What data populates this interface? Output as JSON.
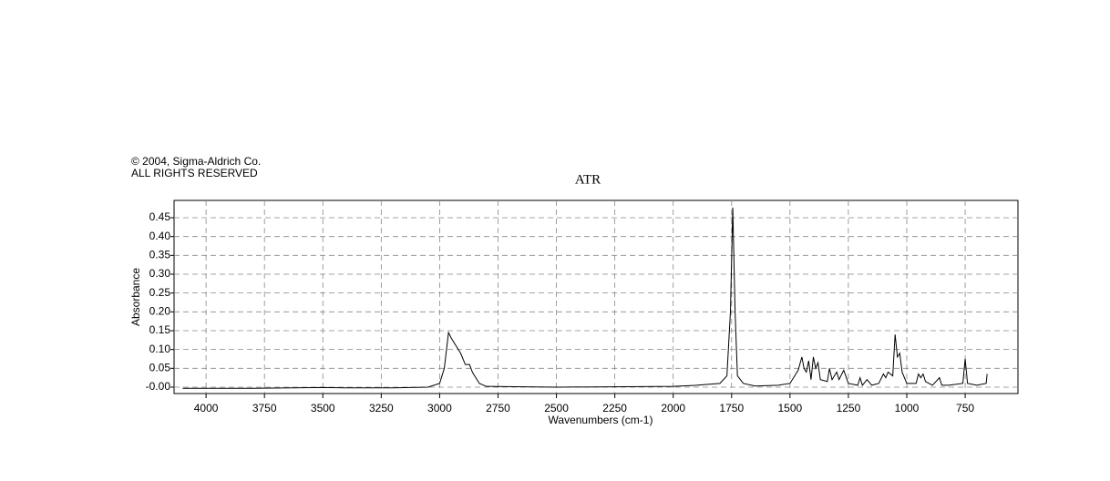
{
  "chart_data": {
    "type": "line",
    "title": "ATR",
    "annotations": [
      "© 2004, Sigma-Aldrich Co.",
      "ALL RIGHTS RESERVED"
    ],
    "x_label": "Wavenumbers (cm-1)",
    "y_label": "Absorbance",
    "color": "#000000",
    "grid": true,
    "xlim": [
      4137,
      524
    ],
    "ylim": [
      -0.017,
      0.496
    ],
    "xticks": [
      4000,
      3750,
      3500,
      3250,
      3000,
      2750,
      2500,
      2250,
      2000,
      1750,
      1500,
      1250,
      1000,
      750
    ],
    "yticks": [
      {
        "value": 0,
        "label": "-0.00"
      },
      0.05,
      {
        "value": 0.1,
        "label": "0.10"
      },
      0.15,
      {
        "value": 0.2,
        "label": "0.20"
      },
      0.25,
      {
        "value": 0.3,
        "label": "0.30"
      },
      0.35,
      {
        "value": 0.4,
        "label": "0.40"
      },
      0.45
    ],
    "x": [
      4100,
      3800,
      3500,
      3400,
      3200,
      3050,
      3000,
      2980,
      2962,
      2950,
      2930,
      2910,
      2890,
      2872,
      2860,
      2850,
      2830,
      2800,
      2500,
      2000,
      1900,
      1800,
      1770,
      1755,
      1745,
      1735,
      1725,
      1700,
      1650,
      1550,
      1500,
      1480,
      1465,
      1449,
      1440,
      1430,
      1420,
      1410,
      1400,
      1390,
      1380,
      1370,
      1340,
      1331,
      1320,
      1300,
      1290,
      1270,
      1250,
      1210,
      1200,
      1190,
      1170,
      1150,
      1120,
      1100,
      1090,
      1080,
      1060,
      1050,
      1040,
      1030,
      1020,
      1000,
      960,
      950,
      940,
      930,
      920,
      890,
      860,
      850,
      820,
      760,
      750,
      740,
      700,
      660,
      656
    ],
    "values": [
      -0.003,
      -0.003,
      -0.001,
      -0.002,
      -0.002,
      0.0,
      0.01,
      0.05,
      0.145,
      0.13,
      0.11,
      0.09,
      0.06,
      0.06,
      0.04,
      0.03,
      0.01,
      0.002,
      0.0,
      0.002,
      0.005,
      0.01,
      0.03,
      0.2,
      0.477,
      0.2,
      0.03,
      0.01,
      0.003,
      0.005,
      0.01,
      0.03,
      0.045,
      0.08,
      0.05,
      0.04,
      0.07,
      0.02,
      0.08,
      0.05,
      0.065,
      0.02,
      0.015,
      0.05,
      0.02,
      0.04,
      0.02,
      0.045,
      0.01,
      0.005,
      0.025,
      0.005,
      0.02,
      0.005,
      0.01,
      0.035,
      0.025,
      0.04,
      0.03,
      0.14,
      0.08,
      0.09,
      0.04,
      0.01,
      0.01,
      0.035,
      0.025,
      0.035,
      0.015,
      0.005,
      0.025,
      0.005,
      0.005,
      0.01,
      0.075,
      0.01,
      0.005,
      0.01,
      0.035
    ]
  }
}
